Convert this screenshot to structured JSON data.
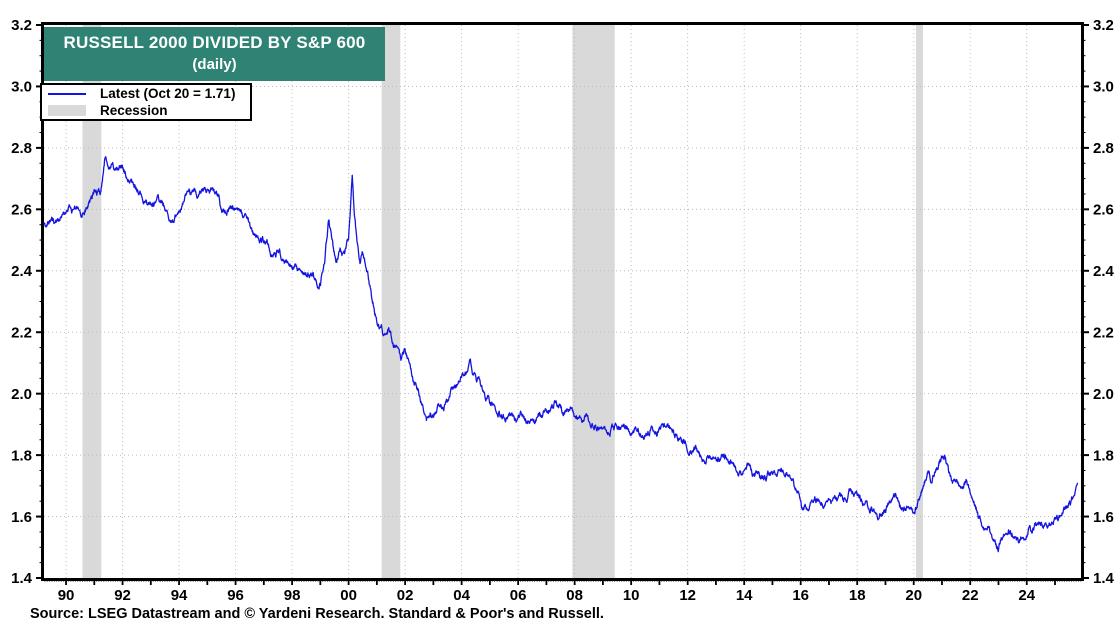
{
  "banner": {
    "line1": "RUSSELL 2000 DIVIDED BY S&P 600",
    "line2": "(daily)"
  },
  "legend": {
    "entries": [
      {
        "swatch": "line",
        "label": "Latest (Oct 20 = 1.71)"
      },
      {
        "swatch": "band",
        "label": "Recession"
      }
    ]
  },
  "source_text": "Source: LSEG Datastream and © Yardeni Research. Standard & Poor's and Russell.",
  "colors": {
    "line": "#1414e0",
    "banner_bg": "#2e8374",
    "banner_text": "#ffffff",
    "recession_band": "#d9d9d9",
    "grid": "#bcbcbc",
    "frame": "#000000",
    "label": "#000000"
  },
  "chart_data": {
    "type": "line",
    "title": "RUSSELL 2000 DIVIDED BY S&P 600 (daily)",
    "xlabel": "",
    "ylabel": "",
    "grid": "dotted-major",
    "legend_position": "top-left",
    "x_range": [
      1989.22,
      2025.92
    ],
    "y_range": [
      1.4,
      3.2
    ],
    "y_major_step": 0.2,
    "y_minor_step": 0.05,
    "x_minor_step_years": 0.0833,
    "y_ticks": [
      {
        "value": 1.4,
        "label": "1.4"
      },
      {
        "value": 1.6,
        "label": "1.6"
      },
      {
        "value": 1.8,
        "label": "1.8"
      },
      {
        "value": 2.0,
        "label": "2.0"
      },
      {
        "value": 2.2,
        "label": "2.2"
      },
      {
        "value": 2.4,
        "label": "2.4"
      },
      {
        "value": 2.6,
        "label": "2.6"
      },
      {
        "value": 2.8,
        "label": "2.8"
      },
      {
        "value": 3.0,
        "label": "3.0"
      },
      {
        "value": 3.2,
        "label": "3.2"
      }
    ],
    "x_ticks": [
      {
        "year": 1990,
        "label": "90"
      },
      {
        "year": 1992,
        "label": "92"
      },
      {
        "year": 1994,
        "label": "94"
      },
      {
        "year": 1996,
        "label": "96"
      },
      {
        "year": 1998,
        "label": "98"
      },
      {
        "year": 2000,
        "label": "00"
      },
      {
        "year": 2002,
        "label": "02"
      },
      {
        "year": 2004,
        "label": "04"
      },
      {
        "year": 2006,
        "label": "06"
      },
      {
        "year": 2008,
        "label": "08"
      },
      {
        "year": 2010,
        "label": "10"
      },
      {
        "year": 2012,
        "label": "12"
      },
      {
        "year": 2014,
        "label": "14"
      },
      {
        "year": 2016,
        "label": "16"
      },
      {
        "year": 2018,
        "label": "18"
      },
      {
        "year": 2020,
        "label": "20"
      },
      {
        "year": 2022,
        "label": "22"
      },
      {
        "year": 2024,
        "label": "24"
      }
    ],
    "recessions": [
      [
        1990.58,
        1991.25
      ],
      [
        2001.17,
        2001.83
      ],
      [
        2007.92,
        2009.42
      ],
      [
        2020.08,
        2020.33
      ]
    ],
    "series": [
      {
        "name": "Latest (Oct 20 = 1.71)",
        "latest_date": "Oct 20",
        "latest_value": 1.71,
        "points": [
          [
            1989.22,
            2.545
          ],
          [
            1989.45,
            2.56
          ],
          [
            1989.7,
            2.565
          ],
          [
            1989.9,
            2.58
          ],
          [
            1990.1,
            2.605
          ],
          [
            1990.25,
            2.585
          ],
          [
            1990.4,
            2.605
          ],
          [
            1990.55,
            2.59
          ],
          [
            1990.75,
            2.61
          ],
          [
            1990.9,
            2.63
          ],
          [
            1991.05,
            2.67
          ],
          [
            1991.2,
            2.645
          ],
          [
            1991.32,
            2.73
          ],
          [
            1991.4,
            2.787
          ],
          [
            1991.5,
            2.74
          ],
          [
            1991.65,
            2.76
          ],
          [
            1991.8,
            2.725
          ],
          [
            1991.95,
            2.74
          ],
          [
            1992.15,
            2.71
          ],
          [
            1992.3,
            2.695
          ],
          [
            1992.5,
            2.67
          ],
          [
            1992.7,
            2.65
          ],
          [
            1993.0,
            2.61
          ],
          [
            1993.3,
            2.63
          ],
          [
            1993.6,
            2.6
          ],
          [
            1993.8,
            2.565
          ],
          [
            1994.0,
            2.61
          ],
          [
            1994.3,
            2.66
          ],
          [
            1994.55,
            2.65
          ],
          [
            1994.85,
            2.66
          ],
          [
            1995.15,
            2.655
          ],
          [
            1995.4,
            2.65
          ],
          [
            1995.5,
            2.6
          ],
          [
            1995.7,
            2.59
          ],
          [
            1995.85,
            2.605
          ],
          [
            1996.0,
            2.59
          ],
          [
            1996.2,
            2.585
          ],
          [
            1996.45,
            2.555
          ],
          [
            1996.55,
            2.53
          ],
          [
            1996.8,
            2.515
          ],
          [
            1997.15,
            2.48
          ],
          [
            1997.35,
            2.445
          ],
          [
            1997.55,
            2.46
          ],
          [
            1997.7,
            2.425
          ],
          [
            1998.05,
            2.41
          ],
          [
            1998.4,
            2.385
          ],
          [
            1998.75,
            2.39
          ],
          [
            1998.9,
            2.36
          ],
          [
            1999.0,
            2.37
          ],
          [
            1999.15,
            2.43
          ],
          [
            1999.3,
            2.565
          ],
          [
            1999.45,
            2.47
          ],
          [
            1999.55,
            2.43
          ],
          [
            1999.7,
            2.46
          ],
          [
            1999.85,
            2.44
          ],
          [
            2000.0,
            2.5
          ],
          [
            2000.13,
            2.72
          ],
          [
            2000.2,
            2.6
          ],
          [
            2000.3,
            2.5
          ],
          [
            2000.4,
            2.44
          ],
          [
            2000.5,
            2.47
          ],
          [
            2000.65,
            2.4
          ],
          [
            2000.8,
            2.32
          ],
          [
            2000.95,
            2.26
          ],
          [
            2001.1,
            2.22
          ],
          [
            2001.25,
            2.19
          ],
          [
            2001.4,
            2.22
          ],
          [
            2001.55,
            2.18
          ],
          [
            2001.7,
            2.14
          ],
          [
            2001.85,
            2.12
          ],
          [
            2002.0,
            2.14
          ],
          [
            2002.1,
            2.1
          ],
          [
            2002.25,
            2.055
          ],
          [
            2002.4,
            2.03
          ],
          [
            2002.6,
            1.97
          ],
          [
            2002.75,
            1.9
          ],
          [
            2002.9,
            1.94
          ],
          [
            2003.0,
            1.92
          ],
          [
            2003.2,
            1.955
          ],
          [
            2003.35,
            1.94
          ],
          [
            2003.6,
            1.995
          ],
          [
            2003.85,
            2.03
          ],
          [
            2004.0,
            2.055
          ],
          [
            2004.2,
            2.08
          ],
          [
            2004.3,
            2.1
          ],
          [
            2004.4,
            2.065
          ],
          [
            2004.65,
            2.03
          ],
          [
            2004.8,
            1.985
          ],
          [
            2005.0,
            1.975
          ],
          [
            2005.25,
            1.94
          ],
          [
            2005.45,
            1.92
          ],
          [
            2005.7,
            1.93
          ],
          [
            2005.95,
            1.91
          ],
          [
            2006.1,
            1.937
          ],
          [
            2006.3,
            1.915
          ],
          [
            2006.5,
            1.9
          ],
          [
            2006.75,
            1.925
          ],
          [
            2007.0,
            1.94
          ],
          [
            2007.2,
            1.963
          ],
          [
            2007.4,
            1.97
          ],
          [
            2007.6,
            1.937
          ],
          [
            2007.85,
            1.953
          ],
          [
            2008.15,
            1.915
          ],
          [
            2008.4,
            1.93
          ],
          [
            2008.6,
            1.904
          ],
          [
            2008.8,
            1.888
          ],
          [
            2009.0,
            1.904
          ],
          [
            2009.15,
            1.88
          ],
          [
            2009.3,
            1.888
          ],
          [
            2009.5,
            1.893
          ],
          [
            2009.75,
            1.904
          ],
          [
            2010.0,
            1.88
          ],
          [
            2010.2,
            1.89
          ],
          [
            2010.45,
            1.87
          ],
          [
            2010.7,
            1.888
          ],
          [
            2010.9,
            1.875
          ],
          [
            2011.15,
            1.898
          ],
          [
            2011.4,
            1.88
          ],
          [
            2011.6,
            1.86
          ],
          [
            2011.85,
            1.84
          ],
          [
            2012.1,
            1.807
          ],
          [
            2012.3,
            1.817
          ],
          [
            2012.55,
            1.78
          ],
          [
            2012.8,
            1.79
          ],
          [
            2013.0,
            1.785
          ],
          [
            2013.3,
            1.79
          ],
          [
            2013.5,
            1.78
          ],
          [
            2013.75,
            1.75
          ],
          [
            2013.9,
            1.73
          ],
          [
            2014.1,
            1.77
          ],
          [
            2014.3,
            1.74
          ],
          [
            2014.6,
            1.73
          ],
          [
            2014.8,
            1.735
          ],
          [
            2015.0,
            1.74
          ],
          [
            2015.3,
            1.755
          ],
          [
            2015.5,
            1.73
          ],
          [
            2015.75,
            1.697
          ],
          [
            2015.9,
            1.687
          ],
          [
            2016.05,
            1.62
          ],
          [
            2016.2,
            1.63
          ],
          [
            2016.45,
            1.65
          ],
          [
            2016.7,
            1.664
          ],
          [
            2016.9,
            1.644
          ],
          [
            2017.15,
            1.654
          ],
          [
            2017.4,
            1.664
          ],
          [
            2017.6,
            1.67
          ],
          [
            2017.9,
            1.69
          ],
          [
            2018.1,
            1.66
          ],
          [
            2018.3,
            1.644
          ],
          [
            2018.5,
            1.62
          ],
          [
            2018.75,
            1.588
          ],
          [
            2019.0,
            1.62
          ],
          [
            2019.15,
            1.645
          ],
          [
            2019.35,
            1.66
          ],
          [
            2019.5,
            1.63
          ],
          [
            2019.7,
            1.62
          ],
          [
            2019.9,
            1.615
          ],
          [
            2020.08,
            1.63
          ],
          [
            2020.2,
            1.66
          ],
          [
            2020.33,
            1.69
          ],
          [
            2020.5,
            1.75
          ],
          [
            2020.65,
            1.72
          ],
          [
            2020.95,
            1.784
          ],
          [
            2021.1,
            1.8
          ],
          [
            2021.25,
            1.74
          ],
          [
            2021.4,
            1.71
          ],
          [
            2021.5,
            1.73
          ],
          [
            2021.7,
            1.687
          ],
          [
            2021.85,
            1.71
          ],
          [
            2022.05,
            1.66
          ],
          [
            2022.2,
            1.628
          ],
          [
            2022.4,
            1.58
          ],
          [
            2022.55,
            1.545
          ],
          [
            2022.65,
            1.566
          ],
          [
            2022.8,
            1.52
          ],
          [
            2023.0,
            1.497
          ],
          [
            2023.15,
            1.53
          ],
          [
            2023.3,
            1.566
          ],
          [
            2023.45,
            1.54
          ],
          [
            2023.55,
            1.546
          ],
          [
            2023.7,
            1.524
          ],
          [
            2023.85,
            1.54
          ],
          [
            2024.05,
            1.566
          ],
          [
            2024.2,
            1.556
          ],
          [
            2024.4,
            1.572
          ],
          [
            2024.6,
            1.566
          ],
          [
            2024.75,
            1.58
          ],
          [
            2024.9,
            1.583
          ],
          [
            2025.1,
            1.59
          ],
          [
            2025.3,
            1.61
          ],
          [
            2025.45,
            1.627
          ],
          [
            2025.55,
            1.637
          ],
          [
            2025.65,
            1.664
          ],
          [
            2025.72,
            1.685
          ],
          [
            2025.8,
            1.71
          ]
        ]
      }
    ]
  }
}
